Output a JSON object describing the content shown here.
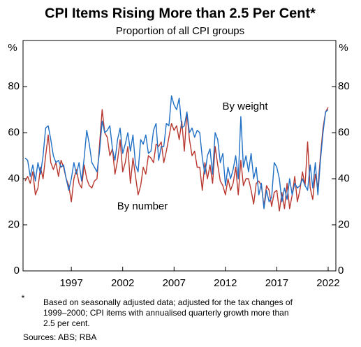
{
  "chart_data": {
    "type": "line",
    "title": "CPI Items Rising More than 2.5 Per Cent*",
    "subtitle": "Proportion of all CPI groups",
    "y_unit": "%",
    "x": [
      1992.5,
      1992.75,
      1993,
      1993.25,
      1993.5,
      1993.75,
      1994,
      1994.25,
      1994.5,
      1994.75,
      1995,
      1995.25,
      1995.5,
      1995.75,
      1996,
      1996.25,
      1996.5,
      1996.75,
      1997,
      1997.25,
      1997.5,
      1997.75,
      1998,
      1998.25,
      1998.5,
      1998.75,
      1999,
      1999.25,
      1999.5,
      1999.75,
      2000,
      2000.25,
      2000.5,
      2000.75,
      2001,
      2001.25,
      2001.5,
      2001.75,
      2002,
      2002.25,
      2002.5,
      2002.75,
      2003,
      2003.25,
      2003.5,
      2003.75,
      2004,
      2004.25,
      2004.5,
      2004.75,
      2005,
      2005.25,
      2005.5,
      2005.75,
      2006,
      2006.25,
      2006.5,
      2006.75,
      2007,
      2007.25,
      2007.5,
      2007.75,
      2008,
      2008.25,
      2008.5,
      2008.75,
      2009,
      2009.25,
      2009.5,
      2009.75,
      2010,
      2010.25,
      2010.5,
      2010.75,
      2011,
      2011.25,
      2011.5,
      2011.75,
      2012,
      2012.25,
      2012.5,
      2012.75,
      2013,
      2013.25,
      2013.5,
      2013.75,
      2014,
      2014.25,
      2014.5,
      2014.75,
      2015,
      2015.25,
      2015.5,
      2015.75,
      2016,
      2016.25,
      2016.5,
      2016.75,
      2017,
      2017.25,
      2017.5,
      2017.75,
      2018,
      2018.25,
      2018.5,
      2018.75,
      2019,
      2019.25,
      2019.5,
      2019.75,
      2020,
      2020.25,
      2020.5,
      2020.75,
      2021,
      2021.25,
      2021.5,
      2021.75,
      2022
    ],
    "series": [
      {
        "name": "By weight",
        "color": "#1f6fc5",
        "values": [
          49,
          48,
          41,
          46,
          39,
          47,
          42,
          50,
          62,
          63,
          57,
          50,
          47,
          48,
          45,
          46,
          40,
          35,
          40,
          47,
          42,
          47,
          39,
          49,
          61,
          55,
          47,
          45,
          43,
          52,
          65,
          60,
          61,
          63,
          53,
          48,
          57,
          62,
          51,
          55,
          60,
          52,
          59,
          46,
          43,
          57,
          55,
          59,
          51,
          52,
          61,
          64,
          48,
          54,
          54,
          64,
          63,
          76,
          72,
          70,
          75,
          62,
          63,
          69,
          60,
          62,
          58,
          61,
          60,
          49,
          42,
          50,
          53,
          42,
          60,
          57,
          47,
          51,
          37,
          45,
          40,
          44,
          50,
          40,
          67,
          45,
          50,
          43,
          51,
          40,
          45,
          33,
          38,
          27,
          35,
          30,
          32,
          47,
          45,
          40,
          30,
          36,
          31,
          40,
          33,
          38,
          36,
          37,
          40,
          37,
          35,
          46,
          36,
          47,
          33,
          48,
          60,
          69,
          70
        ]
      },
      {
        "name": "By number",
        "color": "#b8372f",
        "values": [
          39,
          41,
          38,
          43,
          33,
          36,
          45,
          40,
          50,
          59,
          47,
          44,
          47,
          41,
          48,
          45,
          40,
          37,
          30,
          40,
          44,
          38,
          36,
          46,
          40,
          37,
          36,
          39,
          40,
          55,
          70,
          60,
          58,
          50,
          53,
          42,
          48,
          57,
          43,
          47,
          54,
          38,
          49,
          41,
          33,
          37,
          45,
          42,
          50,
          49,
          47,
          55,
          54,
          56,
          47,
          52,
          58,
          64,
          61,
          63,
          57,
          65,
          52,
          69,
          57,
          50,
          52,
          45,
          45,
          35,
          47,
          40,
          46,
          38,
          54,
          46,
          39,
          37,
          33,
          40,
          35,
          38,
          45,
          33,
          48,
          37,
          40,
          40,
          35,
          29,
          38,
          39,
          37,
          28,
          37,
          35,
          28,
          34,
          35,
          26,
          34,
          27,
          38,
          27,
          33,
          41,
          30,
          35,
          43,
          37,
          56,
          36,
          31,
          42,
          36,
          50,
          62,
          69,
          71
        ]
      }
    ],
    "xlim": [
      1992.3,
      2022.75
    ],
    "xticks": [
      1997,
      2002,
      2007,
      2012,
      2017,
      2022
    ],
    "ylim": [
      0,
      100
    ],
    "yticks": [
      0,
      20,
      40,
      60,
      80
    ],
    "grid": false,
    "footnote": {
      "marker": "*",
      "lines": [
        "Based on seasonally adjusted data; adjusted for the tax changes of",
        "1999–2000; CPI items with annualised quarterly growth more than",
        "2.5 per cent."
      ]
    },
    "source": "Sources: ABS; RBA"
  }
}
